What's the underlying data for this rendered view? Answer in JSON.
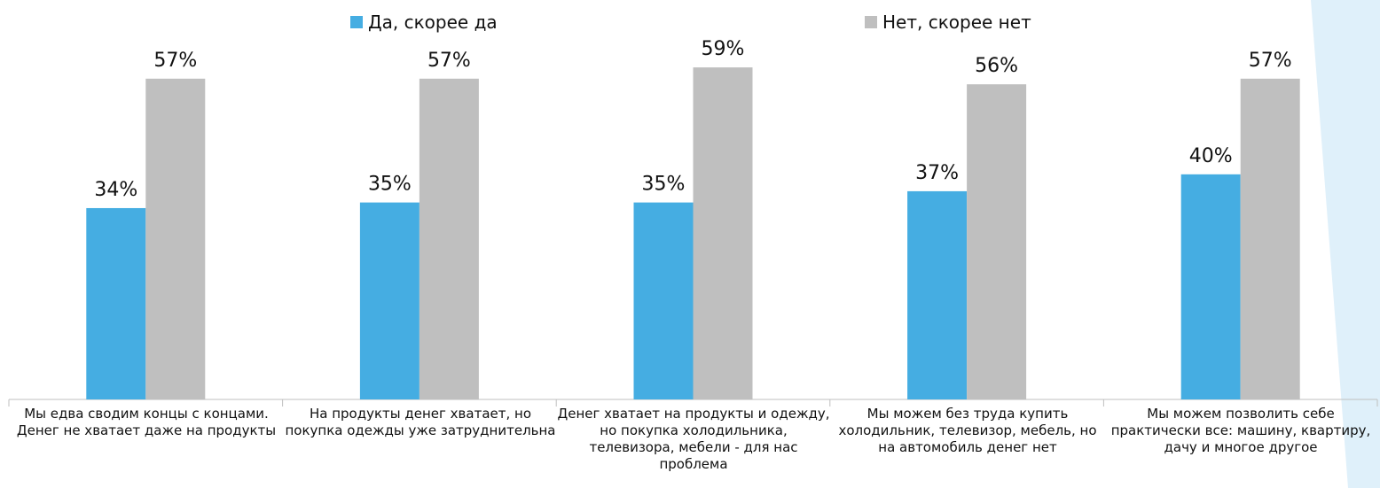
{
  "chart_data": {
    "type": "bar",
    "title": "",
    "xlabel": "",
    "ylabel": "",
    "ylim": [
      0,
      65
    ],
    "grid": false,
    "legend_position": "top",
    "categories": [
      "Мы едва сводим концы с концами. Денег не хватает даже на продукты",
      "На продукты денег хватает, но покупка одежды уже затруднительна",
      "Денег хватает на продукты и одежду, но покупка холодильника, телевизора, мебели - для нас проблема",
      "Мы можем без труда купить холодильник, телевизор, мебель, но на автомобиль денег нет",
      "Мы можем позволить себе практически все: машину, квартиру, дачу и многое другое"
    ],
    "series": [
      {
        "name": "Да, скорее да",
        "color": "#45ade2",
        "values": [
          34,
          35,
          35,
          37,
          40
        ],
        "labels": [
          "34%",
          "35%",
          "35%",
          "37%",
          "40%"
        ]
      },
      {
        "name": "Нет, скорее нет",
        "color": "#bfbfbf",
        "values": [
          57,
          57,
          59,
          56,
          57
        ],
        "labels": [
          "57%",
          "57%",
          "59%",
          "56%",
          "57%"
        ]
      }
    ]
  },
  "decor": {
    "accent_color": "#dff0fa",
    "axis_color": "#bfbfbf"
  }
}
